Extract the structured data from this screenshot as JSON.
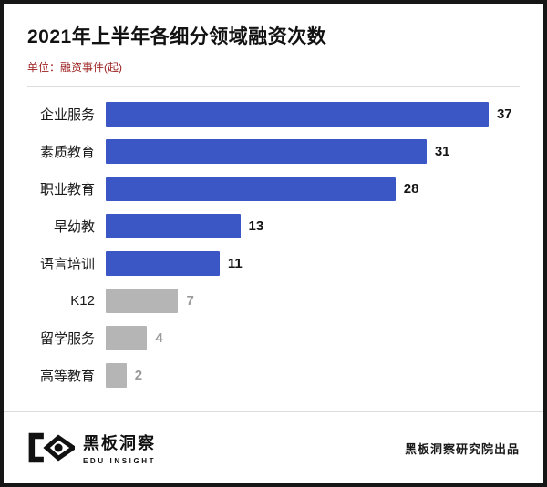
{
  "header": {
    "title": "2021年上半年各细分领域融资次数",
    "subtitle": "单位：融资事件(起)"
  },
  "chart_data": {
    "type": "bar",
    "orientation": "horizontal",
    "title": "2021年上半年各细分领域融资次数",
    "unit_label": "单位：融资事件(起)",
    "categories": [
      "企业服务",
      "素质教育",
      "职业教育",
      "早幼教",
      "语言培训",
      "K12",
      "留学服务",
      "高等教育"
    ],
    "values": [
      37,
      31,
      28,
      13,
      11,
      7,
      4,
      2
    ],
    "bar_colors": [
      "#3a57c5",
      "#3a57c5",
      "#3a57c5",
      "#3a57c5",
      "#3a57c5",
      "#b5b5b5",
      "#b5b5b5",
      "#b5b5b5"
    ],
    "xlim": [
      0,
      40
    ],
    "grid": false,
    "legend": "none",
    "value_labels": "outside-right"
  },
  "colors": {
    "bar_blue": "#3a57c5",
    "bar_gray": "#b5b5b5",
    "value_dark": "#141414",
    "value_gray": "#9a9a9a",
    "subtitle_red": "#9b1c1c"
  },
  "footer": {
    "logo_cn": "黑板洞察",
    "logo_en": "EDU INSIGHT",
    "attribution": "黑板洞察研究院出品"
  }
}
